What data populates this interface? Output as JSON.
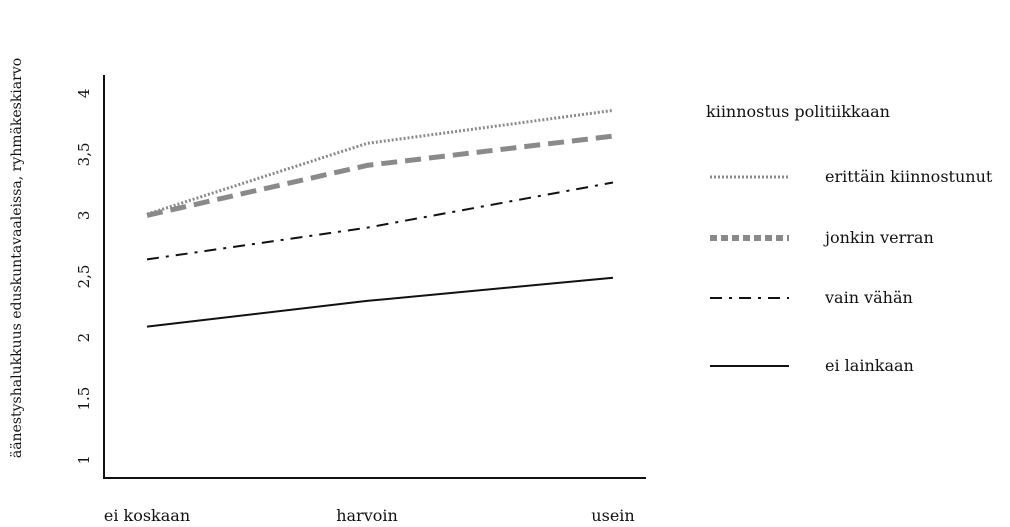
{
  "chart_data": {
    "type": "line",
    "title": "",
    "xlabel": "",
    "ylabel": "äänestyshalukkuus eduskuntavaaleissa, ryhmäkeskiarvo",
    "categories": [
      "ei koskaan",
      "harvoin",
      "usein"
    ],
    "y_ticks": [
      "1",
      "1.5",
      "2",
      "2,5",
      "3",
      "3,5",
      "4"
    ],
    "ylim": [
      0.85,
      4.15
    ],
    "grid": false,
    "legend": {
      "title": "kiinnostus politiikkaan",
      "placement": "right"
    },
    "series": [
      {
        "name": "erittäin kiinnostunut",
        "values": [
          3.01,
          3.59,
          3.86
        ],
        "color": "#8a8a8a",
        "style": "dotted"
      },
      {
        "name": "jonkin verran",
        "values": [
          3.0,
          3.41,
          3.65
        ],
        "color": "#8a8a8a",
        "style": "dashed"
      },
      {
        "name": "vain vähän",
        "values": [
          2.64,
          2.9,
          3.27
        ],
        "color": "#111111",
        "style": "dashdot"
      },
      {
        "name": "ei lainkaan",
        "values": [
          2.09,
          2.3,
          2.49
        ],
        "color": "#111111",
        "style": "solid"
      }
    ]
  }
}
